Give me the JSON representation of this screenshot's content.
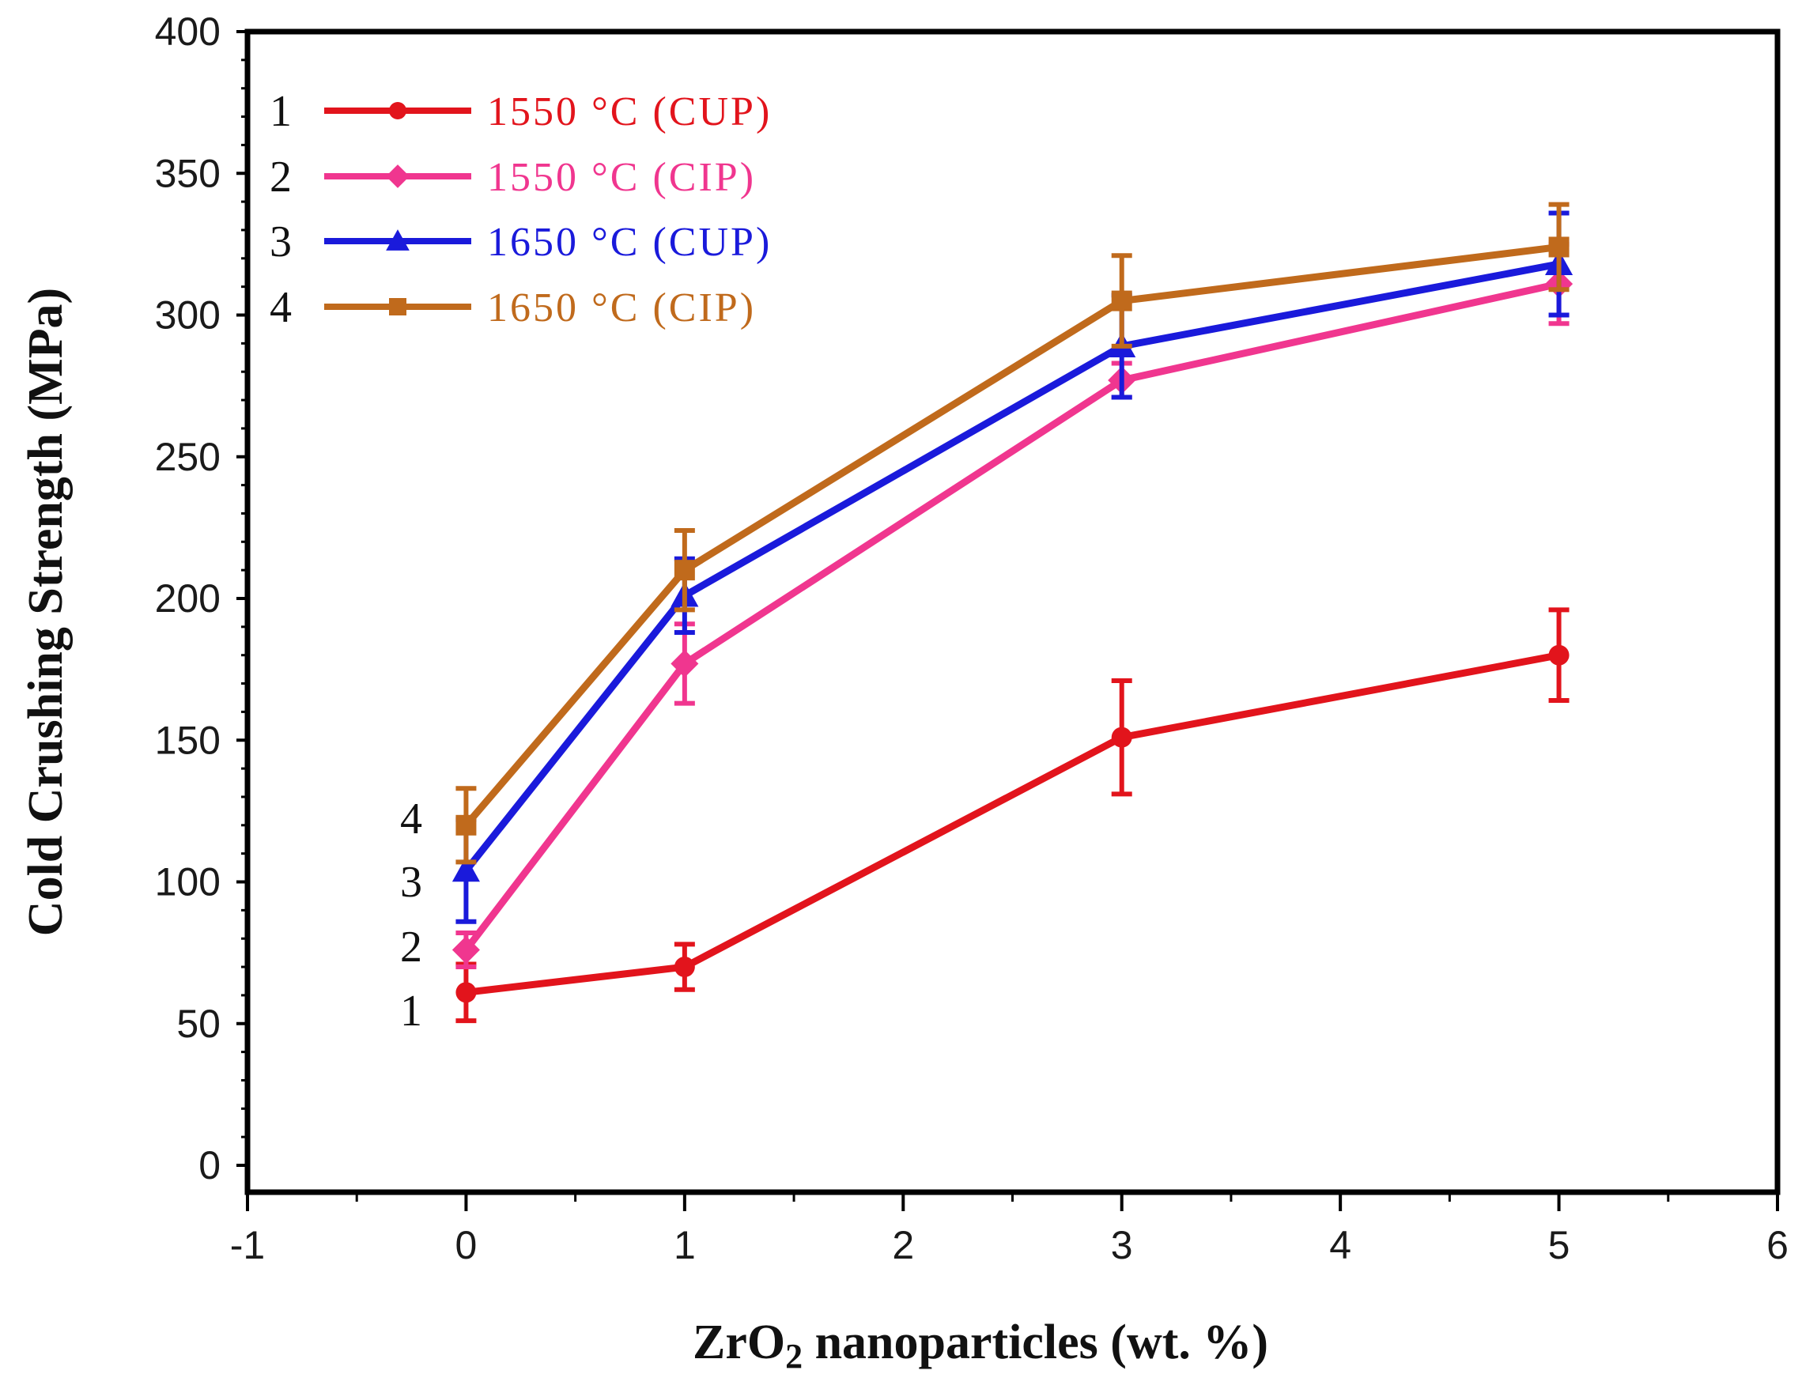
{
  "chart_data": {
    "type": "line",
    "xlabel_parts": {
      "pre": "ZrO",
      "sub": "2",
      "post": " nanoparticles (wt. %)"
    },
    "ylabel": "Cold Crushing Strength (MPa)",
    "xlim": [
      -1,
      6
    ],
    "ylim": [
      0,
      400
    ],
    "x_ticks": [
      -1,
      0,
      1,
      2,
      3,
      4,
      5,
      6
    ],
    "y_ticks": [
      0,
      50,
      100,
      150,
      200,
      250,
      300,
      350,
      400
    ],
    "x": [
      0,
      1,
      3,
      5
    ],
    "series": [
      {
        "id": "1",
        "name": "1550 °C (CUP)",
        "color": "#e2141c",
        "marker": "circle",
        "values": [
          61,
          70,
          151,
          180
        ],
        "errors": [
          10,
          8,
          20,
          16
        ]
      },
      {
        "id": "2",
        "name": "1550 °C (CIP)",
        "color": "#f0368f",
        "marker": "diamond",
        "values": [
          76,
          177,
          277,
          311
        ],
        "errors": [
          6,
          14,
          6,
          14
        ]
      },
      {
        "id": "3",
        "name": "1650 °C (CUP)",
        "color": "#1a1adb",
        "marker": "triangle",
        "values": [
          104,
          201,
          289,
          318
        ],
        "errors": [
          18,
          13,
          18,
          18
        ]
      },
      {
        "id": "4",
        "name": "1650 °C (CIP)",
        "color": "#c06a1c",
        "marker": "square",
        "values": [
          120,
          210,
          305,
          324
        ],
        "errors": [
          13,
          14,
          16,
          15
        ]
      }
    ],
    "end_labels": [
      "1",
      "2",
      "3",
      "4"
    ],
    "legend_position": "top-left",
    "grid": false
  }
}
